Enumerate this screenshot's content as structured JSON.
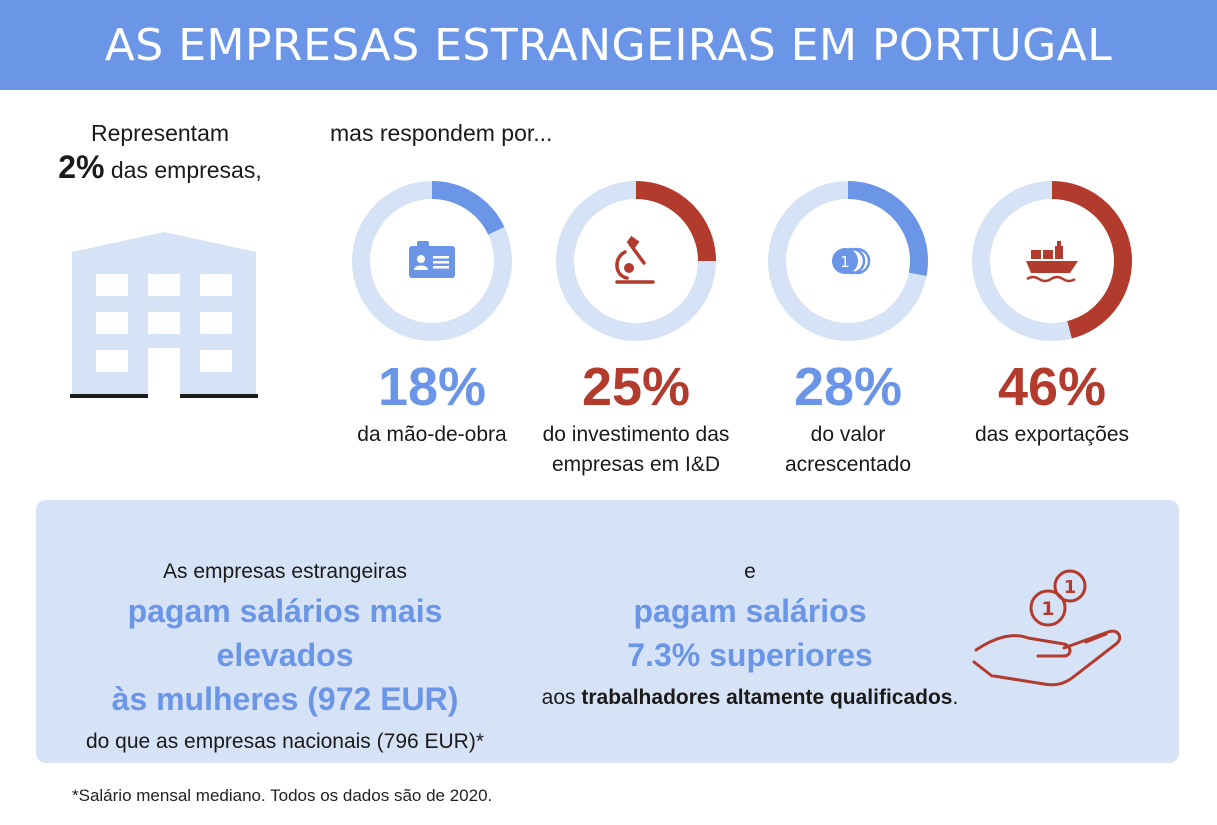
{
  "title": "AS EMPRESAS ESTRANGEIRAS EM PORTUGAL",
  "left": {
    "line1": "Representam",
    "pct": "2%",
    "pct_suffix": "das empresas,"
  },
  "intro": "mas respondem por...",
  "colors": {
    "banner": "#6b96e8",
    "blue": "#6b96e8",
    "red": "#b23b2e",
    "ring_track": "#d6e2f6",
    "building": "#d6e2f6"
  },
  "chart_data": {
    "type": "donut",
    "series": [
      {
        "value": 18,
        "label": "18%",
        "caption_lines": [
          "da mão-de-obra"
        ],
        "color": "#6b96e8",
        "icon": "id-card-icon"
      },
      {
        "value": 25,
        "label": "25%",
        "caption_lines": [
          "do investimento das",
          "empresas em I&D"
        ],
        "color": "#b23b2e",
        "icon": "microscope-icon"
      },
      {
        "value": 28,
        "label": "28%",
        "caption_lines": [
          "do valor",
          "acrescentado"
        ],
        "color": "#6b96e8",
        "icon": "coins-icon"
      },
      {
        "value": 46,
        "label": "46%",
        "caption_lines": [
          "das exportações"
        ],
        "color": "#b23b2e",
        "icon": "cargo-ship-icon"
      }
    ]
  },
  "panel": {
    "left_line1": "As empresas estrangeiras",
    "left_highlight_1": "pagam salários mais elevados",
    "left_highlight_2": "às mulheres (972 EUR)",
    "left_line3": "do que as empresas nacionais (796 EUR)*",
    "right_line1": "e",
    "right_highlight_1": "pagam salários",
    "right_highlight_2": "7.3% superiores",
    "right_line3_prefix": "aos",
    "right_line3_bold": "trabalhadores altamente qualificados",
    "right_line3_suffix": ".",
    "hand_icon": "hand-coins-icon"
  },
  "footnote": "*Salário mensal mediano. Todos os dados são de 2020."
}
